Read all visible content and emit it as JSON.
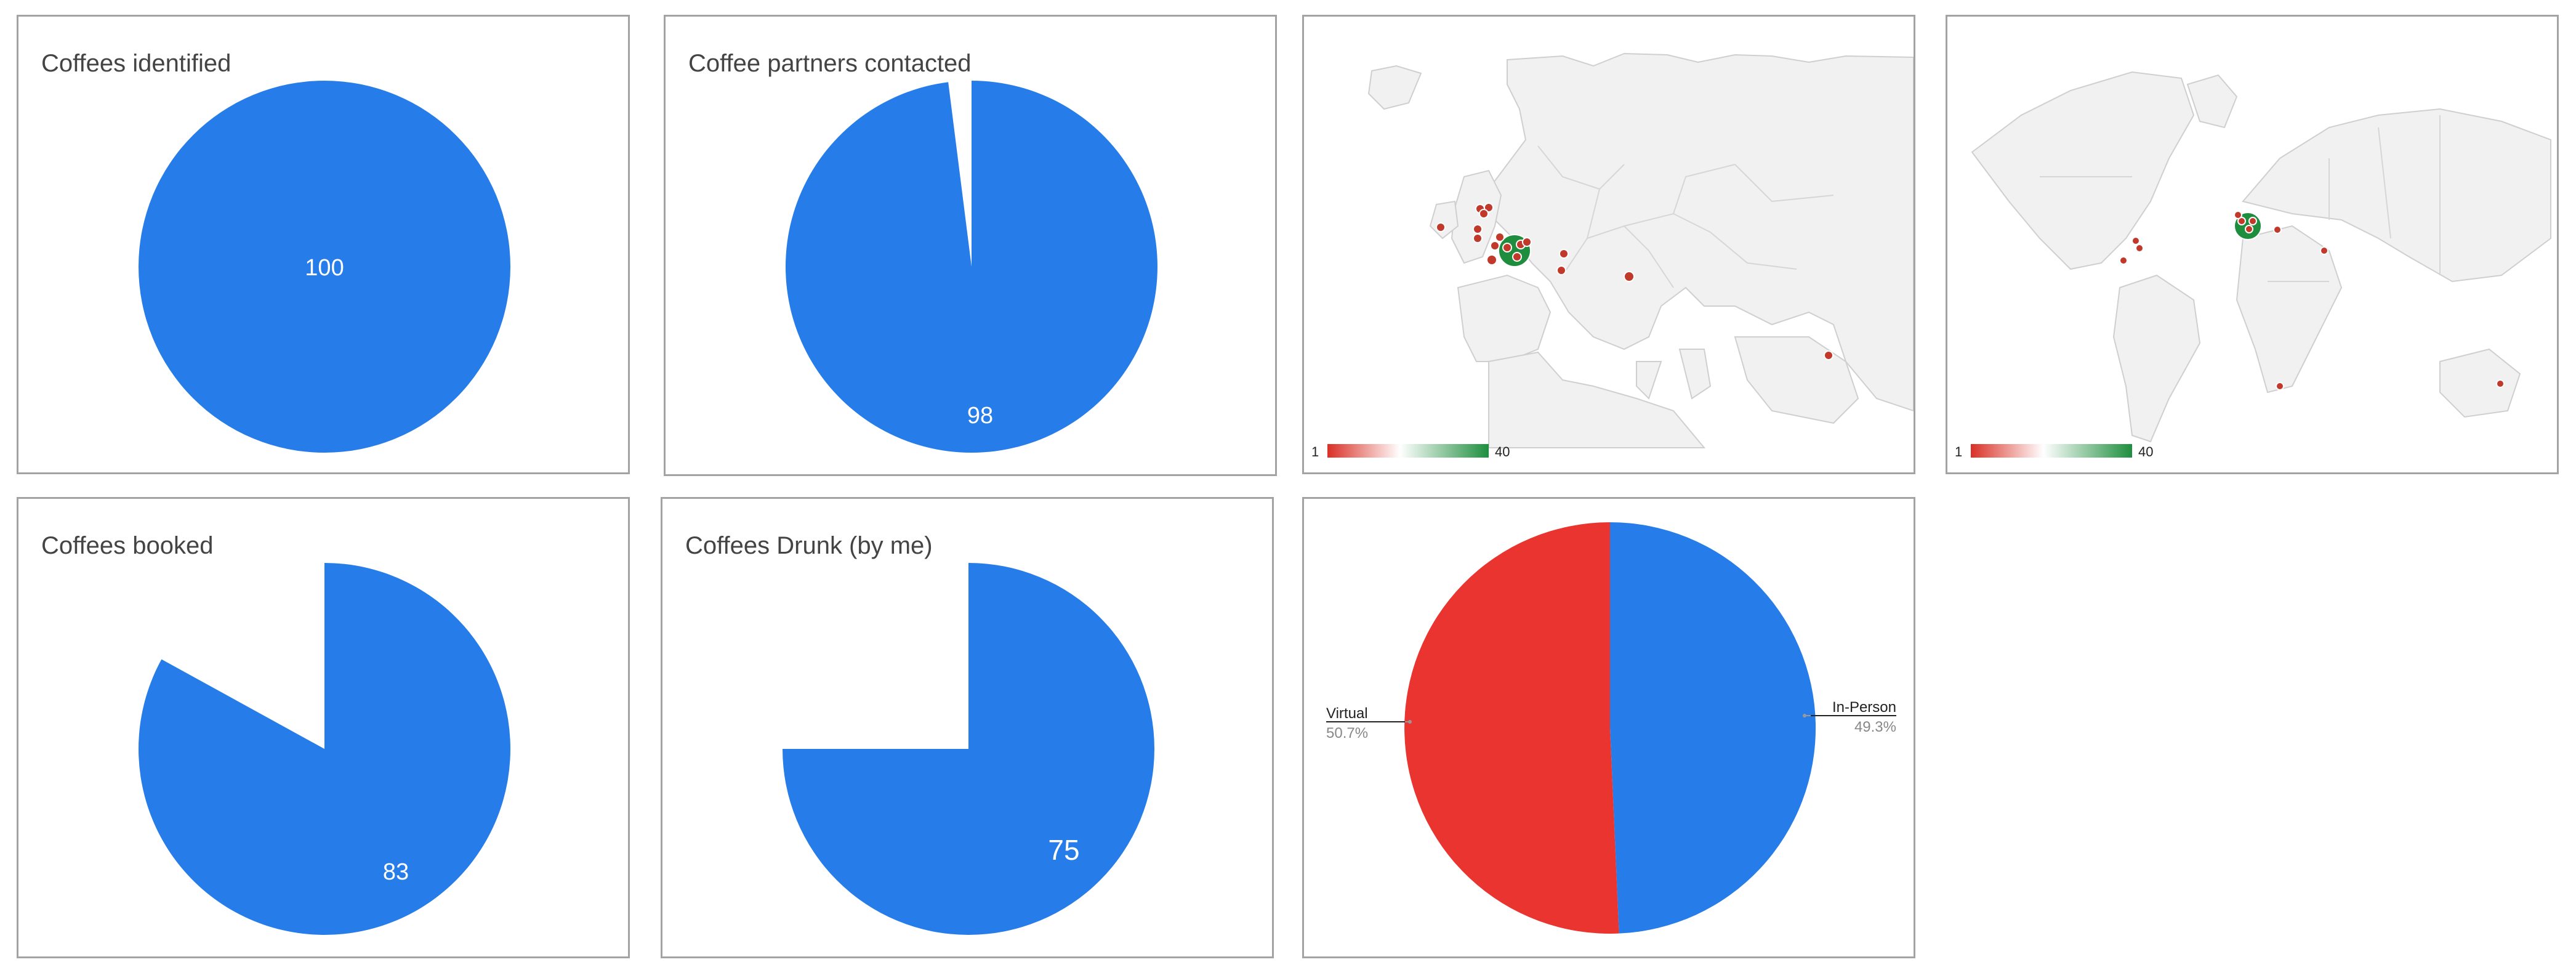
{
  "charts": [
    {
      "chart_data": {
        "type": "pie",
        "title": "Coffees identified",
        "slices": [
          {
            "value": 100,
            "label": "100",
            "color": "#267dea"
          }
        ]
      }
    },
    {
      "chart_data": {
        "type": "pie",
        "title": "Coffee partners contacted",
        "slices": [
          {
            "value": 98,
            "label": "98",
            "color": "#267dea"
          }
        ],
        "total": 100
      }
    },
    {
      "chart_data": {
        "type": "geo",
        "region": "Europe",
        "colorAxis": {
          "min": "1",
          "max": "40",
          "minColor": "#d93025",
          "midColor": "#ffffff",
          "maxColor": "#1e8e3e"
        }
      }
    },
    {
      "chart_data": {
        "type": "geo",
        "region": "World",
        "colorAxis": {
          "min": "1",
          "max": "40",
          "minColor": "#d93025",
          "midColor": "#ffffff",
          "maxColor": "#1e8e3e"
        }
      }
    },
    {
      "chart_data": {
        "type": "pie",
        "title": "Coffees booked",
        "slices": [
          {
            "value": 83,
            "label": "83",
            "color": "#267dea"
          }
        ],
        "total": 100
      }
    },
    {
      "chart_data": {
        "type": "pie",
        "title": "Coffees Drunk (by me)",
        "slices": [
          {
            "value": 75,
            "label": "75",
            "color": "#267dea"
          }
        ],
        "total": 100
      }
    },
    {
      "chart_data": {
        "type": "pie",
        "title": "",
        "slices": [
          {
            "name": "In-Person",
            "percent": "49.3%",
            "value": 49.3,
            "color": "#267dea"
          },
          {
            "name": "Virtual",
            "percent": "50.7%",
            "value": 50.7,
            "color": "#e93430"
          }
        ]
      }
    }
  ]
}
